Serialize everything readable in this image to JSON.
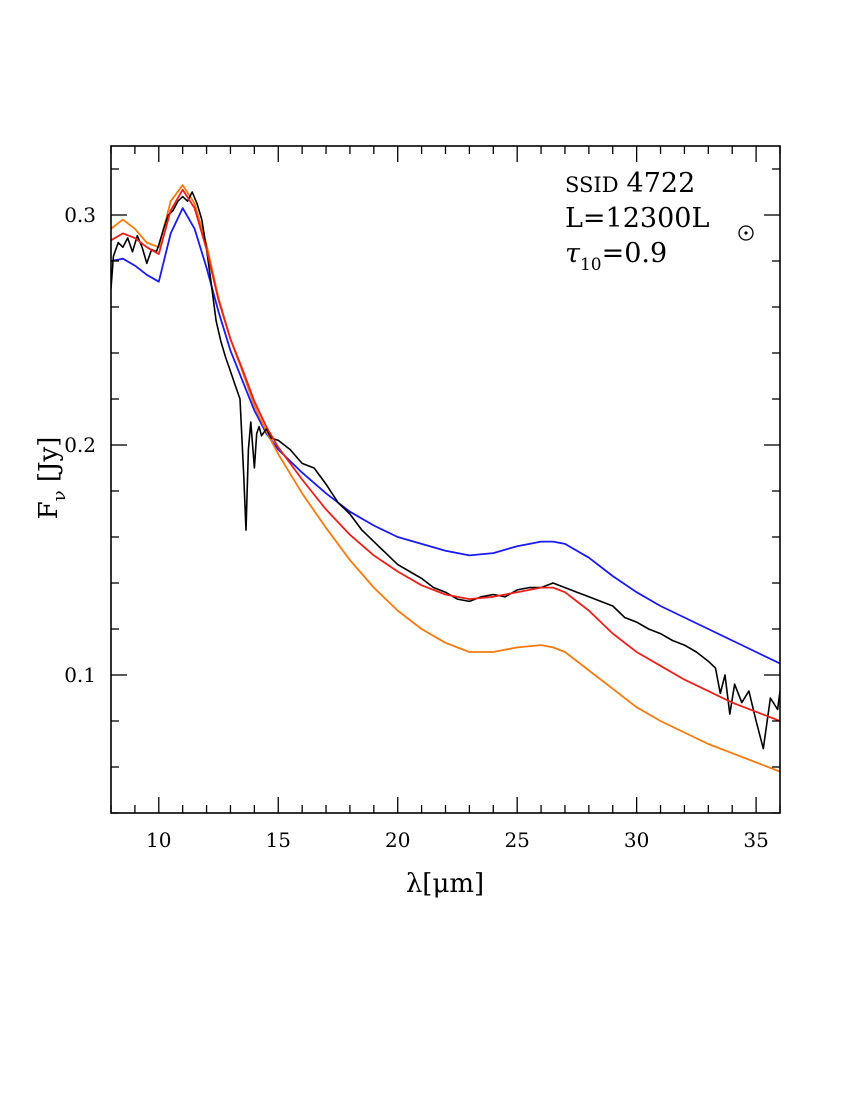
{
  "chart_data": {
    "type": "line",
    "xlabel": "λ[μm]",
    "ylabel": "F_ν [Jy]",
    "xlim": [
      8,
      36
    ],
    "ylim": [
      0.04,
      0.33
    ],
    "x_ticks": [
      10,
      15,
      20,
      25,
      30,
      35
    ],
    "x_tick_labels": [
      "10",
      "15",
      "20",
      "25",
      "30",
      "35"
    ],
    "y_ticks": [
      0.1,
      0.2,
      0.3
    ],
    "y_tick_labels": [
      "0.1",
      "0.2",
      "0.3"
    ],
    "grid": false,
    "legend": "none",
    "annotations": {
      "source_prefix": "SSID",
      "source_id": "4722",
      "luminosity_prefix": "L=12300L",
      "tau_symbol": "τ",
      "tau_subscript": "10",
      "tau_value": "=0.9"
    },
    "series": [
      {
        "color": "#000000",
        "x": [
          8.0,
          8.1,
          8.3,
          8.5,
          8.7,
          8.9,
          9.1,
          9.3,
          9.5,
          9.7,
          9.9,
          10.0,
          10.2,
          10.4,
          10.6,
          10.8,
          11.0,
          11.2,
          11.4,
          11.6,
          11.8,
          12.0,
          12.2,
          12.4,
          12.6,
          12.8,
          13.0,
          13.2,
          13.4,
          13.55,
          13.65,
          13.75,
          13.85,
          14.0,
          14.1,
          14.2,
          14.3,
          14.5,
          14.7,
          15.0,
          15.5,
          16.0,
          16.5,
          17.0,
          17.5,
          18.0,
          18.5,
          19.0,
          19.5,
          20.0,
          20.5,
          21.0,
          21.5,
          22.0,
          22.5,
          23.0,
          23.5,
          24.0,
          24.5,
          25.0,
          25.5,
          26.0,
          26.5,
          27.0,
          27.5,
          28.0,
          28.5,
          29.0,
          29.5,
          30.0,
          30.5,
          31.0,
          31.5,
          32.0,
          32.5,
          33.0,
          33.3,
          33.5,
          33.7,
          33.9,
          34.1,
          34.4,
          34.7,
          35.0,
          35.3,
          35.6,
          35.9,
          36.0
        ],
        "values": [
          0.268,
          0.282,
          0.288,
          0.286,
          0.29,
          0.284,
          0.291,
          0.286,
          0.279,
          0.285,
          0.284,
          0.287,
          0.294,
          0.3,
          0.302,
          0.306,
          0.308,
          0.306,
          0.31,
          0.305,
          0.298,
          0.285,
          0.27,
          0.254,
          0.245,
          0.238,
          0.232,
          0.226,
          0.22,
          0.188,
          0.163,
          0.198,
          0.21,
          0.19,
          0.205,
          0.208,
          0.204,
          0.207,
          0.203,
          0.202,
          0.198,
          0.192,
          0.19,
          0.183,
          0.175,
          0.17,
          0.163,
          0.158,
          0.153,
          0.148,
          0.145,
          0.142,
          0.138,
          0.136,
          0.133,
          0.132,
          0.134,
          0.135,
          0.134,
          0.137,
          0.138,
          0.138,
          0.14,
          0.138,
          0.136,
          0.134,
          0.132,
          0.13,
          0.125,
          0.123,
          0.12,
          0.118,
          0.115,
          0.113,
          0.11,
          0.106,
          0.103,
          0.092,
          0.1,
          0.083,
          0.096,
          0.088,
          0.093,
          0.08,
          0.068,
          0.09,
          0.085,
          0.093
        ]
      },
      {
        "color": "#e8211c",
        "x": [
          8.0,
          8.5,
          9.0,
          9.5,
          10.0,
          10.5,
          11.0,
          11.5,
          12.0,
          12.5,
          13.0,
          13.5,
          14.0,
          14.5,
          15.0,
          16.0,
          17.0,
          18.0,
          19.0,
          20.0,
          21.0,
          22.0,
          23.0,
          24.0,
          25.0,
          26.0,
          26.5,
          27.0,
          28.0,
          29.0,
          30.0,
          31.0,
          32.0,
          33.0,
          34.0,
          35.0,
          36.0
        ],
        "values": [
          0.289,
          0.292,
          0.29,
          0.286,
          0.283,
          0.302,
          0.311,
          0.303,
          0.285,
          0.263,
          0.246,
          0.233,
          0.219,
          0.208,
          0.199,
          0.185,
          0.172,
          0.161,
          0.152,
          0.145,
          0.139,
          0.135,
          0.133,
          0.134,
          0.136,
          0.138,
          0.138,
          0.136,
          0.128,
          0.118,
          0.11,
          0.104,
          0.098,
          0.093,
          0.088,
          0.084,
          0.08
        ]
      },
      {
        "color": "#f47a10",
        "x": [
          8.0,
          8.5,
          9.0,
          9.5,
          10.0,
          10.5,
          11.0,
          11.5,
          12.0,
          12.5,
          13.0,
          13.5,
          14.0,
          14.5,
          15.0,
          16.0,
          17.0,
          18.0,
          19.0,
          20.0,
          21.0,
          22.0,
          23.0,
          24.0,
          25.0,
          26.0,
          26.5,
          27.0,
          28.0,
          29.0,
          30.0,
          31.0,
          32.0,
          33.0,
          34.0,
          35.0,
          36.0
        ],
        "values": [
          0.294,
          0.298,
          0.294,
          0.288,
          0.286,
          0.306,
          0.313,
          0.305,
          0.287,
          0.264,
          0.246,
          0.232,
          0.217,
          0.206,
          0.196,
          0.179,
          0.164,
          0.15,
          0.138,
          0.128,
          0.12,
          0.114,
          0.11,
          0.11,
          0.112,
          0.113,
          0.112,
          0.11,
          0.102,
          0.094,
          0.086,
          0.08,
          0.075,
          0.07,
          0.066,
          0.062,
          0.058
        ]
      },
      {
        "color": "#1a1af0",
        "x": [
          8.0,
          8.5,
          9.0,
          9.5,
          10.0,
          10.5,
          11.0,
          11.5,
          12.0,
          12.5,
          13.0,
          13.5,
          14.0,
          14.5,
          15.0,
          16.0,
          17.0,
          18.0,
          19.0,
          20.0,
          21.0,
          22.0,
          23.0,
          24.0,
          25.0,
          26.0,
          26.5,
          27.0,
          28.0,
          29.0,
          30.0,
          31.0,
          32.0,
          33.0,
          34.0,
          35.0,
          36.0
        ],
        "values": [
          0.28,
          0.281,
          0.278,
          0.274,
          0.271,
          0.292,
          0.303,
          0.294,
          0.277,
          0.258,
          0.241,
          0.228,
          0.215,
          0.205,
          0.198,
          0.188,
          0.179,
          0.171,
          0.165,
          0.16,
          0.157,
          0.154,
          0.152,
          0.153,
          0.156,
          0.158,
          0.158,
          0.157,
          0.151,
          0.143,
          0.136,
          0.13,
          0.125,
          0.12,
          0.115,
          0.11,
          0.105
        ]
      }
    ]
  }
}
